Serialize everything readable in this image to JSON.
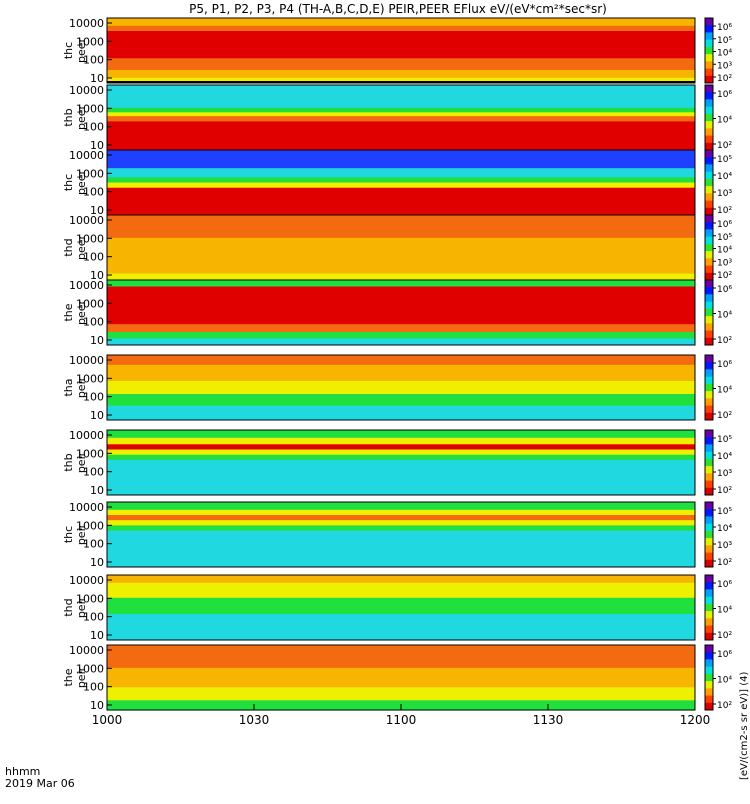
{
  "title": "P5, P1, P2, P3, P4 (TH-A,B,C,D,E) PEIR,PEER EFlux eV/(eV*cm²*sec*sr)",
  "x_axis": {
    "ticks": [
      "1000",
      "1030",
      "1100",
      "1130",
      "1200"
    ],
    "label_line1": "hhmm",
    "label_line2": "2019 Mar 06"
  },
  "colorbar_label": "[eV/(cm2-s sr eV)] (4)",
  "colors": {
    "red": "#e00000",
    "orange": "#f46a10",
    "yellow_orange": "#f7b400",
    "yellow": "#eef000",
    "green": "#20e040",
    "cyan": "#20d8e0",
    "blue": "#2040ff",
    "black": "#000000"
  },
  "chart_data": {
    "type": "heatmap",
    "x_range": [
      "10:00",
      "12:00"
    ],
    "y_scale": "log",
    "y_ticks": [
      "10",
      "100",
      "1000",
      "10000"
    ],
    "panels": [
      {
        "ylabel": [
          "thc",
          "peer"
        ],
        "cbar_ticks": [
          "10⁶",
          "10⁵",
          "10⁴",
          "10³",
          "10²"
        ],
        "bands": [
          {
            "from": 0.0,
            "to": 0.12,
            "color": "yellow_orange"
          },
          {
            "from": 0.12,
            "to": 0.2,
            "color": "orange"
          },
          {
            "from": 0.2,
            "to": 0.62,
            "color": "red"
          },
          {
            "from": 0.62,
            "to": 0.8,
            "color": "orange"
          },
          {
            "from": 0.8,
            "to": 0.92,
            "color": "yellow_orange"
          },
          {
            "from": 0.92,
            "to": 0.97,
            "color": "yellow"
          },
          {
            "from": 0.97,
            "to": 1.0,
            "color": "black"
          }
        ]
      },
      {
        "ylabel": [
          "thb",
          "peer"
        ],
        "cbar_ticks": [
          "10⁶",
          "10⁴",
          "10²"
        ],
        "bands": [
          {
            "from": 0.0,
            "to": 0.35,
            "color": "cyan"
          },
          {
            "from": 0.35,
            "to": 0.42,
            "color": "green"
          },
          {
            "from": 0.42,
            "to": 0.48,
            "color": "yellow"
          },
          {
            "from": 0.48,
            "to": 0.56,
            "color": "orange"
          },
          {
            "from": 0.56,
            "to": 1.0,
            "color": "red"
          }
        ]
      },
      {
        "ylabel": [
          "thc",
          "peer"
        ],
        "cbar_ticks": [
          "10⁵",
          "10⁴",
          "10³",
          "10²"
        ],
        "bands": [
          {
            "from": 0.0,
            "to": 0.28,
            "color": "blue"
          },
          {
            "from": 0.28,
            "to": 0.42,
            "color": "cyan"
          },
          {
            "from": 0.42,
            "to": 0.5,
            "color": "green"
          },
          {
            "from": 0.5,
            "to": 0.58,
            "color": "yellow"
          },
          {
            "from": 0.58,
            "to": 1.0,
            "color": "red"
          }
        ]
      },
      {
        "ylabel": [
          "thd",
          "peer"
        ],
        "cbar_ticks": [
          "10⁶",
          "10⁵",
          "10⁴",
          "10³",
          "10²"
        ],
        "bands": [
          {
            "from": 0.0,
            "to": 0.35,
            "color": "orange"
          },
          {
            "from": 0.35,
            "to": 0.75,
            "color": "yellow_orange"
          },
          {
            "from": 0.75,
            "to": 0.9,
            "color": "yellow_orange"
          },
          {
            "from": 0.9,
            "to": 1.0,
            "color": "yellow"
          }
        ]
      },
      {
        "ylabel": [
          "the",
          "peer"
        ],
        "cbar_ticks": [
          "10⁶",
          "10⁴",
          "10²"
        ],
        "bands": [
          {
            "from": 0.0,
            "to": 0.1,
            "color": "green"
          },
          {
            "from": 0.1,
            "to": 0.68,
            "color": "red"
          },
          {
            "from": 0.68,
            "to": 0.8,
            "color": "orange"
          },
          {
            "from": 0.8,
            "to": 0.9,
            "color": "green"
          },
          {
            "from": 0.9,
            "to": 1.0,
            "color": "cyan"
          }
        ]
      },
      {
        "ylabel": [
          "tha",
          "peir"
        ],
        "cbar_ticks": [
          "10⁶",
          "10⁴",
          "10²"
        ],
        "bands": [
          {
            "from": 0.0,
            "to": 0.15,
            "color": "orange"
          },
          {
            "from": 0.15,
            "to": 0.4,
            "color": "yellow_orange"
          },
          {
            "from": 0.4,
            "to": 0.6,
            "color": "yellow"
          },
          {
            "from": 0.6,
            "to": 0.78,
            "color": "green"
          },
          {
            "from": 0.78,
            "to": 1.0,
            "color": "cyan"
          }
        ]
      },
      {
        "ylabel": [
          "thb",
          "peir"
        ],
        "cbar_ticks": [
          "10⁵",
          "10⁴",
          "10³",
          "10²"
        ],
        "bands": [
          {
            "from": 0.0,
            "to": 0.12,
            "color": "green"
          },
          {
            "from": 0.12,
            "to": 0.22,
            "color": "yellow"
          },
          {
            "from": 0.22,
            "to": 0.3,
            "color": "red"
          },
          {
            "from": 0.3,
            "to": 0.38,
            "color": "yellow"
          },
          {
            "from": 0.38,
            "to": 0.46,
            "color": "green"
          },
          {
            "from": 0.46,
            "to": 1.0,
            "color": "cyan"
          }
        ]
      },
      {
        "ylabel": [
          "thc",
          "peir"
        ],
        "cbar_ticks": [
          "10⁵",
          "10⁴",
          "10³",
          "10²"
        ],
        "bands": [
          {
            "from": 0.0,
            "to": 0.12,
            "color": "green"
          },
          {
            "from": 0.12,
            "to": 0.2,
            "color": "yellow"
          },
          {
            "from": 0.2,
            "to": 0.28,
            "color": "orange"
          },
          {
            "from": 0.28,
            "to": 0.36,
            "color": "yellow"
          },
          {
            "from": 0.36,
            "to": 0.44,
            "color": "green"
          },
          {
            "from": 0.44,
            "to": 1.0,
            "color": "cyan"
          }
        ]
      },
      {
        "ylabel": [
          "thd",
          "peir"
        ],
        "cbar_ticks": [
          "10⁶",
          "10⁴",
          "10²"
        ],
        "bands": [
          {
            "from": 0.0,
            "to": 0.12,
            "color": "yellow_orange"
          },
          {
            "from": 0.12,
            "to": 0.35,
            "color": "yellow"
          },
          {
            "from": 0.35,
            "to": 0.6,
            "color": "green"
          },
          {
            "from": 0.6,
            "to": 1.0,
            "color": "cyan"
          }
        ]
      },
      {
        "ylabel": [
          "the",
          "peir"
        ],
        "cbar_ticks": [
          "10⁶",
          "10⁴",
          "10²"
        ],
        "bands": [
          {
            "from": 0.0,
            "to": 0.35,
            "color": "orange"
          },
          {
            "from": 0.35,
            "to": 0.65,
            "color": "yellow_orange"
          },
          {
            "from": 0.65,
            "to": 0.85,
            "color": "yellow"
          },
          {
            "from": 0.85,
            "to": 1.0,
            "color": "green"
          }
        ]
      }
    ]
  }
}
